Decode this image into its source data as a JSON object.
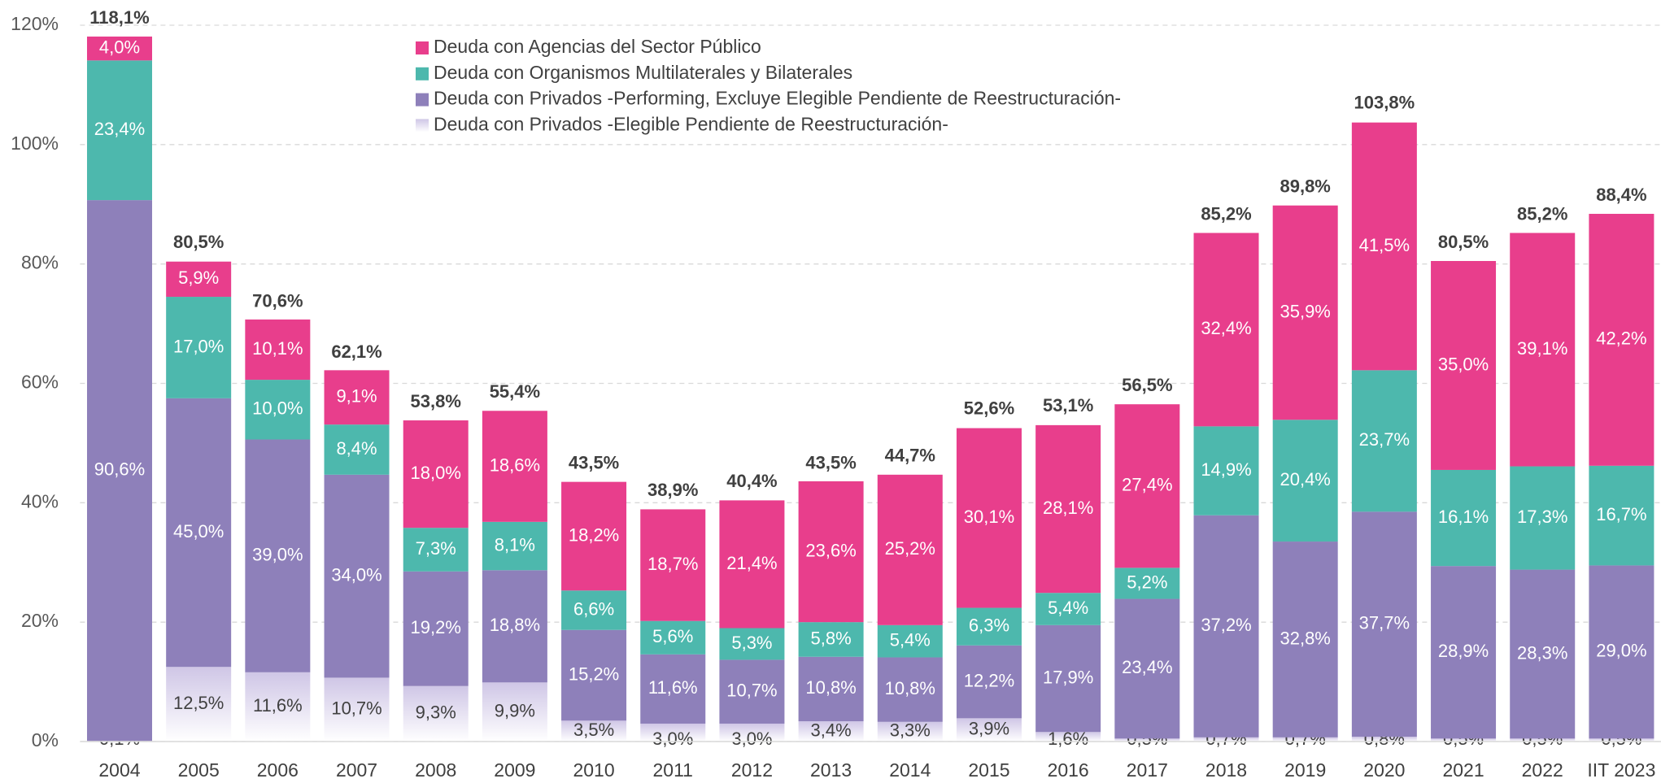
{
  "chart_data": {
    "type": "stacked_bar",
    "categories": [
      "2004",
      "2005",
      "2006",
      "2007",
      "2008",
      "2009",
      "2010",
      "2011",
      "2012",
      "2013",
      "2014",
      "2015",
      "2016",
      "2017",
      "2018",
      "2019",
      "2020",
      "2021",
      "2022",
      "IIT 2023"
    ],
    "series": [
      {
        "name": "Deuda con Privados -Elegible Pendiente de Reestructuración-",
        "color": "#cfc6e6",
        "gradient": true,
        "label_color": "#404040",
        "values": [
          0.1,
          12.5,
          11.6,
          10.7,
          9.3,
          9.9,
          3.5,
          3.0,
          3.0,
          3.4,
          3.3,
          3.9,
          1.6,
          0.5,
          0.7,
          0.7,
          0.8,
          0.5,
          0.5,
          0.5
        ],
        "value_labels": [
          "0,1%",
          "12,5%",
          "11,6%",
          "10,7%",
          "9,3%",
          "9,9%",
          "3,5%",
          "3,0%",
          "3,0%",
          "3,4%",
          "3,3%",
          "3,9%",
          "1,6%",
          "0,5%",
          "0,7%",
          "0,7%",
          "0,8%",
          "0,5%",
          "0,5%",
          "0,5%"
        ]
      },
      {
        "name": "Deuda con Privados -Performing, Excluye Elegible Pendiente de Reestructuración-",
        "color": "#8e80ba",
        "label_color": "#ffffff",
        "values": [
          90.6,
          45.0,
          39.0,
          34.0,
          19.2,
          18.8,
          15.2,
          11.6,
          10.7,
          10.8,
          10.8,
          12.2,
          17.9,
          23.4,
          37.2,
          32.8,
          37.7,
          28.9,
          28.3,
          29.0
        ],
        "value_labels": [
          "90,6%",
          "45,0%",
          "39,0%",
          "34,0%",
          "19,2%",
          "18,8%",
          "15,2%",
          "11,6%",
          "10,7%",
          "10,8%",
          "10,8%",
          "12,2%",
          "17,9%",
          "23,4%",
          "37,2%",
          "32,8%",
          "37,7%",
          "28,9%",
          "28,3%",
          "29,0%"
        ]
      },
      {
        "name": "Deuda con Organismos Multilaterales y Bilaterales",
        "color": "#4db8ad",
        "label_color": "#ffffff",
        "values": [
          23.4,
          17.0,
          10.0,
          8.4,
          7.3,
          8.1,
          6.6,
          5.6,
          5.3,
          5.8,
          5.4,
          6.3,
          5.4,
          5.2,
          14.9,
          20.4,
          23.7,
          16.1,
          17.3,
          16.7
        ],
        "value_labels": [
          "23,4%",
          "17,0%",
          "10,0%",
          "8,4%",
          "7,3%",
          "8,1%",
          "6,6%",
          "5,6%",
          "5,3%",
          "5,8%",
          "5,4%",
          "6,3%",
          "5,4%",
          "5,2%",
          "14,9%",
          "20,4%",
          "23,7%",
          "16,1%",
          "17,3%",
          "16,7%"
        ]
      },
      {
        "name": "Deuda con Agencias del Sector Público",
        "color": "#e83e8c",
        "label_color": "#ffffff",
        "values": [
          4.0,
          5.9,
          10.1,
          9.1,
          18.0,
          18.6,
          18.2,
          18.7,
          21.4,
          23.6,
          25.2,
          30.1,
          28.1,
          27.4,
          32.4,
          35.9,
          41.5,
          35.0,
          39.1,
          42.2
        ],
        "value_labels": [
          "4,0%",
          "5,9%",
          "10,1%",
          "9,1%",
          "18,0%",
          "18,6%",
          "18,2%",
          "18,7%",
          "21,4%",
          "23,6%",
          "25,2%",
          "30,1%",
          "28,1%",
          "27,4%",
          "32,4%",
          "35,9%",
          "41,5%",
          "35,0%",
          "39,1%",
          "42,2%"
        ]
      }
    ],
    "totals": [
      118.1,
      80.5,
      70.6,
      62.1,
      53.8,
      55.4,
      43.5,
      38.9,
      40.4,
      43.5,
      44.7,
      52.6,
      53.1,
      56.5,
      85.2,
      89.8,
      103.8,
      80.5,
      85.2,
      88.4
    ],
    "total_labels": [
      "118,1%",
      "80,5%",
      "70,6%",
      "62,1%",
      "53,8%",
      "55,4%",
      "43,5%",
      "38,9%",
      "40,4%",
      "43,5%",
      "44,7%",
      "52,6%",
      "53,1%",
      "56,5%",
      "85,2%",
      "89,8%",
      "103,8%",
      "80,5%",
      "85,2%",
      "88,4%"
    ],
    "ylim": [
      0,
      120
    ],
    "yticks": [
      {
        "value": 0,
        "label": "0%"
      },
      {
        "value": 20,
        "label": "20%"
      },
      {
        "value": 40,
        "label": "40%"
      },
      {
        "value": 60,
        "label": "60%"
      },
      {
        "value": 80,
        "label": "80%"
      },
      {
        "value": 100,
        "label": "100%"
      },
      {
        "value": 120,
        "label": "120%"
      }
    ],
    "grid": true
  }
}
